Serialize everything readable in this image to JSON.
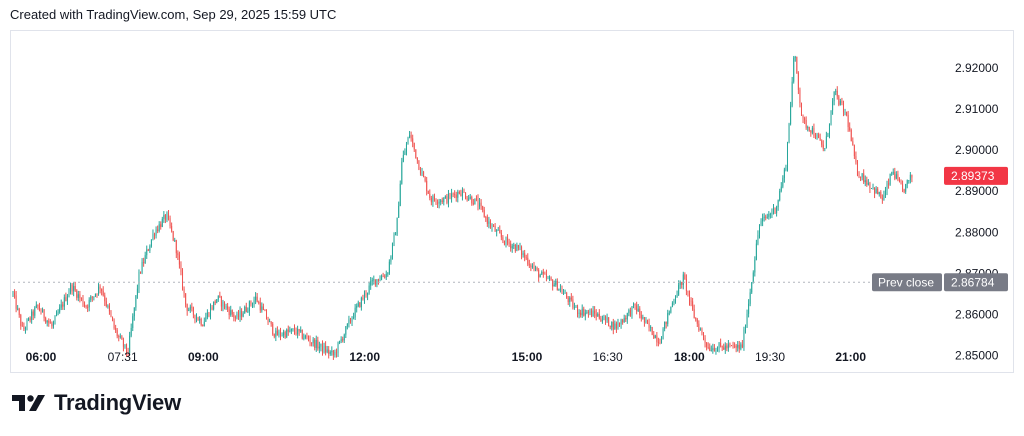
{
  "header": {
    "text": "Created with TradingView.com, Sep 29, 2025 15:59 UTC"
  },
  "footer": {
    "logo_text": "TradingView"
  },
  "colors": {
    "up": "#26a69a",
    "down": "#ef5350",
    "last_price_bg": "#f23645",
    "prev_close_bg": "#787b86",
    "grid": "#e0e3eb",
    "text": "#131722"
  },
  "chart_data": {
    "type": "candlestick",
    "title": "",
    "xlabel": "",
    "ylabel": "",
    "ylim": [
      2.846,
      2.929
    ],
    "y_ticks": [
      "2.85000",
      "2.86000",
      "2.87000",
      "2.88000",
      "2.89000",
      "2.90000",
      "2.91000",
      "2.92000"
    ],
    "x_ticks": [
      {
        "label": "06:00",
        "bold": true,
        "pos": 0.0
      },
      {
        "label": "07:31",
        "bold": false,
        "pos": 0.084
      },
      {
        "label": "09:00",
        "bold": true,
        "pos": 0.167
      },
      {
        "label": "12:00",
        "bold": true,
        "pos": 0.333
      },
      {
        "label": "15:00",
        "bold": true,
        "pos": 0.5
      },
      {
        "label": "16:30",
        "bold": false,
        "pos": 0.583
      },
      {
        "label": "18:00",
        "bold": true,
        "pos": 0.667
      },
      {
        "label": "19:30",
        "bold": false,
        "pos": 0.75
      },
      {
        "label": "21:00",
        "bold": true,
        "pos": 0.833
      }
    ],
    "prev_close": {
      "label": "Prev close",
      "value": 2.86784,
      "display": "2.86784"
    },
    "last_price": {
      "value": 2.89373,
      "display": "2.89373"
    },
    "price_path": [
      [
        0.0,
        2.865
      ],
      [
        0.01,
        2.856
      ],
      [
        0.025,
        2.862
      ],
      [
        0.04,
        2.857
      ],
      [
        0.06,
        2.867
      ],
      [
        0.075,
        2.862
      ],
      [
        0.09,
        2.867
      ],
      [
        0.105,
        2.856
      ],
      [
        0.118,
        2.8505
      ],
      [
        0.13,
        2.87
      ],
      [
        0.145,
        2.88
      ],
      [
        0.158,
        2.884
      ],
      [
        0.168,
        2.876
      ],
      [
        0.178,
        2.862
      ],
      [
        0.195,
        2.858
      ],
      [
        0.21,
        2.864
      ],
      [
        0.23,
        2.859
      ],
      [
        0.25,
        2.864
      ],
      [
        0.27,
        2.855
      ],
      [
        0.29,
        2.856
      ],
      [
        0.31,
        2.853
      ],
      [
        0.33,
        2.85
      ],
      [
        0.35,
        2.86
      ],
      [
        0.37,
        2.868
      ],
      [
        0.385,
        2.87
      ],
      [
        0.395,
        2.882
      ],
      [
        0.4,
        2.897
      ],
      [
        0.408,
        2.904
      ],
      [
        0.418,
        2.896
      ],
      [
        0.43,
        2.888
      ],
      [
        0.445,
        2.888
      ],
      [
        0.46,
        2.89
      ],
      [
        0.478,
        2.887
      ],
      [
        0.49,
        2.882
      ],
      [
        0.505,
        2.878
      ],
      [
        0.52,
        2.876
      ],
      [
        0.54,
        2.87
      ],
      [
        0.56,
        2.867
      ],
      [
        0.58,
        2.861
      ],
      [
        0.6,
        2.86
      ],
      [
        0.62,
        2.857
      ],
      [
        0.64,
        2.862
      ],
      [
        0.65,
        2.858
      ],
      [
        0.665,
        2.8535
      ],
      [
        0.68,
        2.864
      ],
      [
        0.69,
        2.869
      ],
      [
        0.7,
        2.86
      ],
      [
        0.715,
        2.852
      ],
      [
        0.73,
        2.852
      ],
      [
        0.75,
        2.852
      ],
      [
        0.758,
        2.865
      ],
      [
        0.768,
        2.882
      ],
      [
        0.785,
        2.886
      ],
      [
        0.795,
        2.896
      ],
      [
        0.804,
        2.924
      ],
      [
        0.812,
        2.907
      ],
      [
        0.822,
        2.905
      ],
      [
        0.835,
        2.9
      ],
      [
        0.845,
        2.914
      ],
      [
        0.858,
        2.908
      ],
      [
        0.868,
        2.895
      ],
      [
        0.88,
        2.892
      ],
      [
        0.895,
        2.888
      ],
      [
        0.905,
        2.895
      ],
      [
        0.915,
        2.89
      ],
      [
        0.925,
        2.8937
      ]
    ]
  }
}
